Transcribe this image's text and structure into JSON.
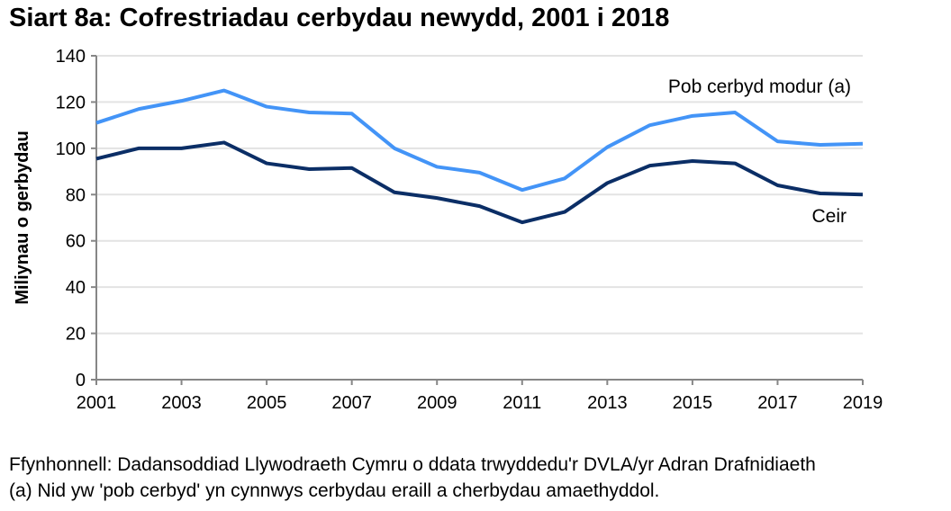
{
  "chart_data": {
    "type": "line",
    "title": "Siart 8a: Cofrestriadau cerbydau newydd, 2001 i 2018",
    "xlabel": "",
    "ylabel": "Miliynau o gerbydau",
    "xlim": [
      2001,
      2019
    ],
    "ylim": [
      0,
      140
    ],
    "x_ticks": [
      "2001",
      "2003",
      "2005",
      "2007",
      "2009",
      "2011",
      "2013",
      "2015",
      "2017",
      "2019"
    ],
    "y_ticks": [
      "0",
      "20",
      "40",
      "60",
      "80",
      "100",
      "120",
      "140"
    ],
    "grid": true,
    "legend": "inline labels",
    "x": [
      2001,
      2002,
      2003,
      2004,
      2005,
      2006,
      2007,
      2008,
      2009,
      2010,
      2011,
      2012,
      2013,
      2014,
      2015,
      2016,
      2017,
      2018,
      2019
    ],
    "series": [
      {
        "name": "Pob cerbyd modur (a)",
        "color": "#4394f7",
        "values": [
          111,
          117,
          120.5,
          125,
          118,
          115.5,
          115,
          100,
          92,
          89.5,
          82,
          87,
          100.5,
          110,
          114,
          115.5,
          103,
          101.5,
          102
        ]
      },
      {
        "name": "Ceir",
        "color": "#0b2e66",
        "values": [
          95.5,
          100,
          100,
          102.5,
          93.5,
          91,
          91.5,
          81,
          78.5,
          75,
          68,
          72.5,
          85,
          92.5,
          94.5,
          93.5,
          84,
          80.5,
          80
        ]
      }
    ]
  },
  "notes": {
    "source": "Ffynhonnell: Dadansoddiad Llywodraeth Cymru o ddata trwyddedu'r DVLA/yr Adran Drafnidiaeth",
    "footnote": "(a) Nid yw 'pob cerbyd' yn cynnwys cerbydau eraill a cherbydau amaethyddol."
  }
}
